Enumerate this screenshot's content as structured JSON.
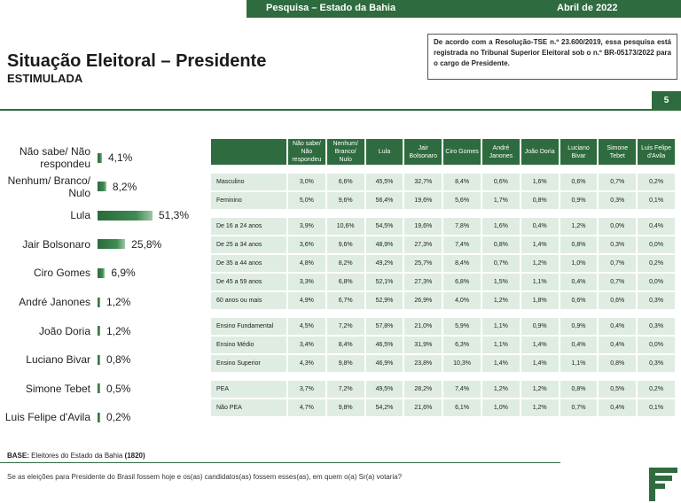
{
  "header": {
    "survey": "Pesquisa – Estado da Bahia",
    "date": "Abril de 2022"
  },
  "title": "Situação Eleitoral – Presidente",
  "subtitle": "ESTIMULADA",
  "notice": "De acordo com a Resolução-TSE n.º 23.600/2019, essa pesquisa está registrada no Tribunal Superior Eleitoral sob o n.º BR-05173/2022 para o cargo de Presidente.",
  "page_number": "5",
  "chart_data": {
    "type": "bar",
    "orientation": "horizontal",
    "categories": [
      "Não sabe/ Não respondeu",
      "Nenhum/ Branco/ Nulo",
      "Lula",
      "Jair Bolsonaro",
      "Ciro Gomes",
      "André Janones",
      "João Doria",
      "Luciano Bivar",
      "Simone Tebet",
      "Luis Felipe d'Avila"
    ],
    "values": [
      4.1,
      8.2,
      51.3,
      25.8,
      6.9,
      1.2,
      1.2,
      0.8,
      0.5,
      0.2
    ],
    "value_labels": [
      "4,1%",
      "8,2%",
      "51,3%",
      "25,8%",
      "6,9%",
      "1,2%",
      "1,2%",
      "0,8%",
      "0,5%",
      "0,2%"
    ],
    "xlim": [
      0,
      100
    ],
    "grid": false,
    "legend": "none"
  },
  "table": {
    "headers": [
      "Não sabe/ Não respondeu",
      "Nenhum/ Branco/ Nulo",
      "Lula",
      "Jair Bolsonaro",
      "Ciro Gomes",
      "André Janones",
      "João Doria",
      "Luciano Bivar",
      "Simone Tebet",
      "Luis Felipe d'Avila"
    ],
    "groups": [
      {
        "rows": [
          {
            "label": "Masculino",
            "values": [
              "3,0%",
              "6,6%",
              "45,5%",
              "32,7%",
              "8,4%",
              "0,6%",
              "1,6%",
              "0,6%",
              "0,7%",
              "0,2%"
            ]
          },
          {
            "label": "Feminino",
            "values": [
              "5,0%",
              "9,6%",
              "56,4%",
              "19,6%",
              "5,6%",
              "1,7%",
              "0,8%",
              "0,9%",
              "0,3%",
              "0,1%"
            ]
          }
        ]
      },
      {
        "rows": [
          {
            "label": "De 16 a 24 anos",
            "values": [
              "3,9%",
              "10,6%",
              "54,5%",
              "19,6%",
              "7,8%",
              "1,6%",
              "0,4%",
              "1,2%",
              "0,0%",
              "0,4%"
            ]
          },
          {
            "label": "De 25 a 34 anos",
            "values": [
              "3,6%",
              "9,6%",
              "48,9%",
              "27,3%",
              "7,4%",
              "0,8%",
              "1,4%",
              "0,8%",
              "0,3%",
              "0,0%"
            ]
          },
          {
            "label": "De 35 a 44 anos",
            "values": [
              "4,8%",
              "8,2%",
              "49,2%",
              "25,7%",
              "8,4%",
              "0,7%",
              "1,2%",
              "1,0%",
              "0,7%",
              "0,2%"
            ]
          },
          {
            "label": "De 45 a 59 anos",
            "values": [
              "3,3%",
              "6,8%",
              "52,1%",
              "27,3%",
              "6,8%",
              "1,5%",
              "1,1%",
              "0,4%",
              "0,7%",
              "0,0%"
            ]
          },
          {
            "label": "60 anos ou mais",
            "values": [
              "4,9%",
              "6,7%",
              "52,9%",
              "26,9%",
              "4,0%",
              "1,2%",
              "1,8%",
              "0,6%",
              "0,6%",
              "0,3%"
            ]
          }
        ]
      },
      {
        "rows": [
          {
            "label": "Ensino Fundamental",
            "values": [
              "4,5%",
              "7,2%",
              "57,8%",
              "21,0%",
              "5,9%",
              "1,1%",
              "0,9%",
              "0,9%",
              "0,4%",
              "0,3%"
            ]
          },
          {
            "label": "Ensino Médio",
            "values": [
              "3,4%",
              "8,4%",
              "46,5%",
              "31,9%",
              "6,3%",
              "1,1%",
              "1,4%",
              "0,4%",
              "0,4%",
              "0,0%"
            ]
          },
          {
            "label": "Ensino Superior",
            "values": [
              "4,3%",
              "9,8%",
              "46,9%",
              "23,8%",
              "10,3%",
              "1,4%",
              "1,4%",
              "1,1%",
              "0,8%",
              "0,3%"
            ]
          }
        ]
      },
      {
        "rows": [
          {
            "label": "PEA",
            "values": [
              "3,7%",
              "7,2%",
              "49,5%",
              "28,2%",
              "7,4%",
              "1,2%",
              "1,2%",
              "0,8%",
              "0,5%",
              "0,2%"
            ]
          },
          {
            "label": "Não PEA",
            "values": [
              "4,7%",
              "9,8%",
              "54,2%",
              "21,6%",
              "6,1%",
              "1,0%",
              "1,2%",
              "0,7%",
              "0,4%",
              "0,1%"
            ]
          }
        ]
      }
    ]
  },
  "base": {
    "label": "BASE:",
    "text": "Eleitores do Estado da Bahia",
    "count": "(1820)"
  },
  "question": "Se as eleições para Presidente do Brasil fossem hoje e os(as) candidatos(as) fossem esses(as), em quem o(a) Sr(a) votaria?",
  "colors": {
    "brand_green": "#2e6b3e",
    "table_cell": "#dfece2"
  }
}
